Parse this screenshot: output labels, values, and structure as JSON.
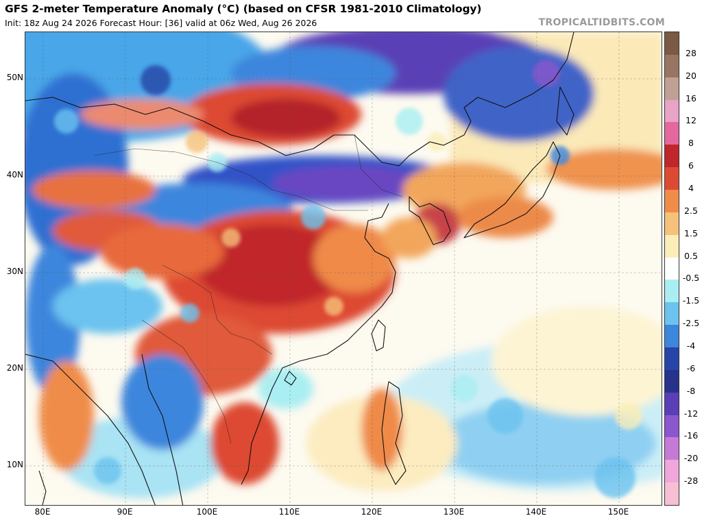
{
  "header": {
    "title": "GFS 2-meter Temperature Anomaly (°C) (based on CFSR 1981-2010 Climatology)",
    "subtitle": "Init: 18z Aug 24 2026   Forecast Hour: [36]   valid at 06z Wed, Aug 26 2026",
    "brand": "TROPICALTIDBITS.COM"
  },
  "map": {
    "lat_labels": [
      "50N",
      "40N",
      "30N",
      "20N",
      "10N"
    ],
    "lon_labels": [
      "80E",
      "90E",
      "100E",
      "110E",
      "120E",
      "130E",
      "140E",
      "150E"
    ]
  },
  "colorbar": {
    "labels": [
      "28",
      "20",
      "16",
      "12",
      "8",
      "6",
      "4",
      "2.5",
      "1.5",
      "0.5",
      "-0.5",
      "-1.5",
      "-2.5",
      "-4",
      "-6",
      "-8",
      "-12",
      "-16",
      "-20",
      "-28"
    ],
    "colors": [
      "#7a5a44",
      "#9a7462",
      "#c0a093",
      "#e8a3c6",
      "#e3689d",
      "#c0262c",
      "#dd4a33",
      "#f08c49",
      "#f6c27a",
      "#fbeeb8",
      "#ffffff",
      "#a9eef2",
      "#6cc3ef",
      "#3d86dd",
      "#2744a8",
      "#27328a",
      "#5a3fb6",
      "#8b57cf",
      "#c57ad8",
      "#f0a6da",
      "#f6bfd3"
    ]
  }
}
